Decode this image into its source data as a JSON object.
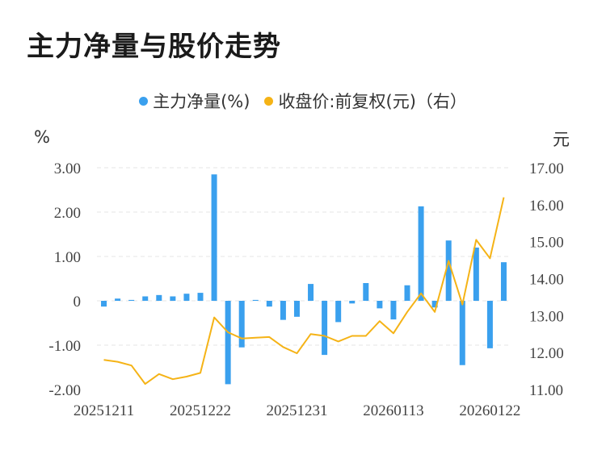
{
  "title": "主力净量与股价走势",
  "legend": {
    "series1": "主力净量(%)",
    "series2": "收盘价:前复权(元)（右）"
  },
  "units": {
    "left": "%",
    "right": "元"
  },
  "colors": {
    "bar": "#3aa0ee",
    "line": "#f5b316",
    "grid": "#e6e6e6"
  },
  "chart_data": {
    "type": "bar+line",
    "title": "主力净量与股价走势",
    "x_tick_labels": [
      "20251211",
      "20251222",
      "20251231",
      "20260113",
      "20260122"
    ],
    "x_tick_indices": [
      0,
      7,
      14,
      21,
      28
    ],
    "ylim_left": [
      -2,
      3
    ],
    "yticks_left": [
      {
        "v": 3,
        "label": "3.00"
      },
      {
        "v": 2,
        "label": "2.00"
      },
      {
        "v": 1,
        "label": "1.00"
      },
      {
        "v": 0,
        "label": "0"
      },
      {
        "v": -1,
        "label": "-1.00"
      },
      {
        "v": -2,
        "label": "-2.00"
      }
    ],
    "ylim_right": [
      11,
      17
    ],
    "yticks_right": [
      {
        "v": 17,
        "label": "17.00"
      },
      {
        "v": 16,
        "label": "16.00"
      },
      {
        "v": 15,
        "label": "15.00"
      },
      {
        "v": 14,
        "label": "14.00"
      },
      {
        "v": 13,
        "label": "13.00"
      },
      {
        "v": 12,
        "label": "12.00"
      },
      {
        "v": 11,
        "label": "11.00"
      }
    ],
    "series": [
      {
        "name": "主力净量(%)",
        "type": "bar",
        "axis": "left",
        "values": [
          -0.13,
          0.05,
          0.02,
          0.1,
          0.13,
          0.1,
          0.16,
          0.18,
          2.85,
          -1.88,
          -1.05,
          0.02,
          -0.13,
          -0.43,
          -0.36,
          0.38,
          -1.22,
          -0.48,
          -0.06,
          0.4,
          -0.17,
          -0.42,
          0.35,
          2.13,
          -0.15,
          1.36,
          -1.45,
          1.2,
          -1.07,
          0.87
        ]
      },
      {
        "name": "收盘价:前复权(元)（右）",
        "type": "line",
        "axis": "right",
        "values": [
          11.8,
          11.75,
          11.65,
          11.15,
          11.42,
          11.28,
          11.35,
          11.45,
          12.95,
          12.55,
          12.38,
          12.4,
          12.42,
          12.15,
          11.98,
          12.5,
          12.45,
          12.3,
          12.45,
          12.45,
          12.85,
          12.52,
          13.1,
          13.6,
          13.1,
          14.48,
          13.3,
          15.05,
          14.55,
          16.2
        ]
      }
    ]
  }
}
